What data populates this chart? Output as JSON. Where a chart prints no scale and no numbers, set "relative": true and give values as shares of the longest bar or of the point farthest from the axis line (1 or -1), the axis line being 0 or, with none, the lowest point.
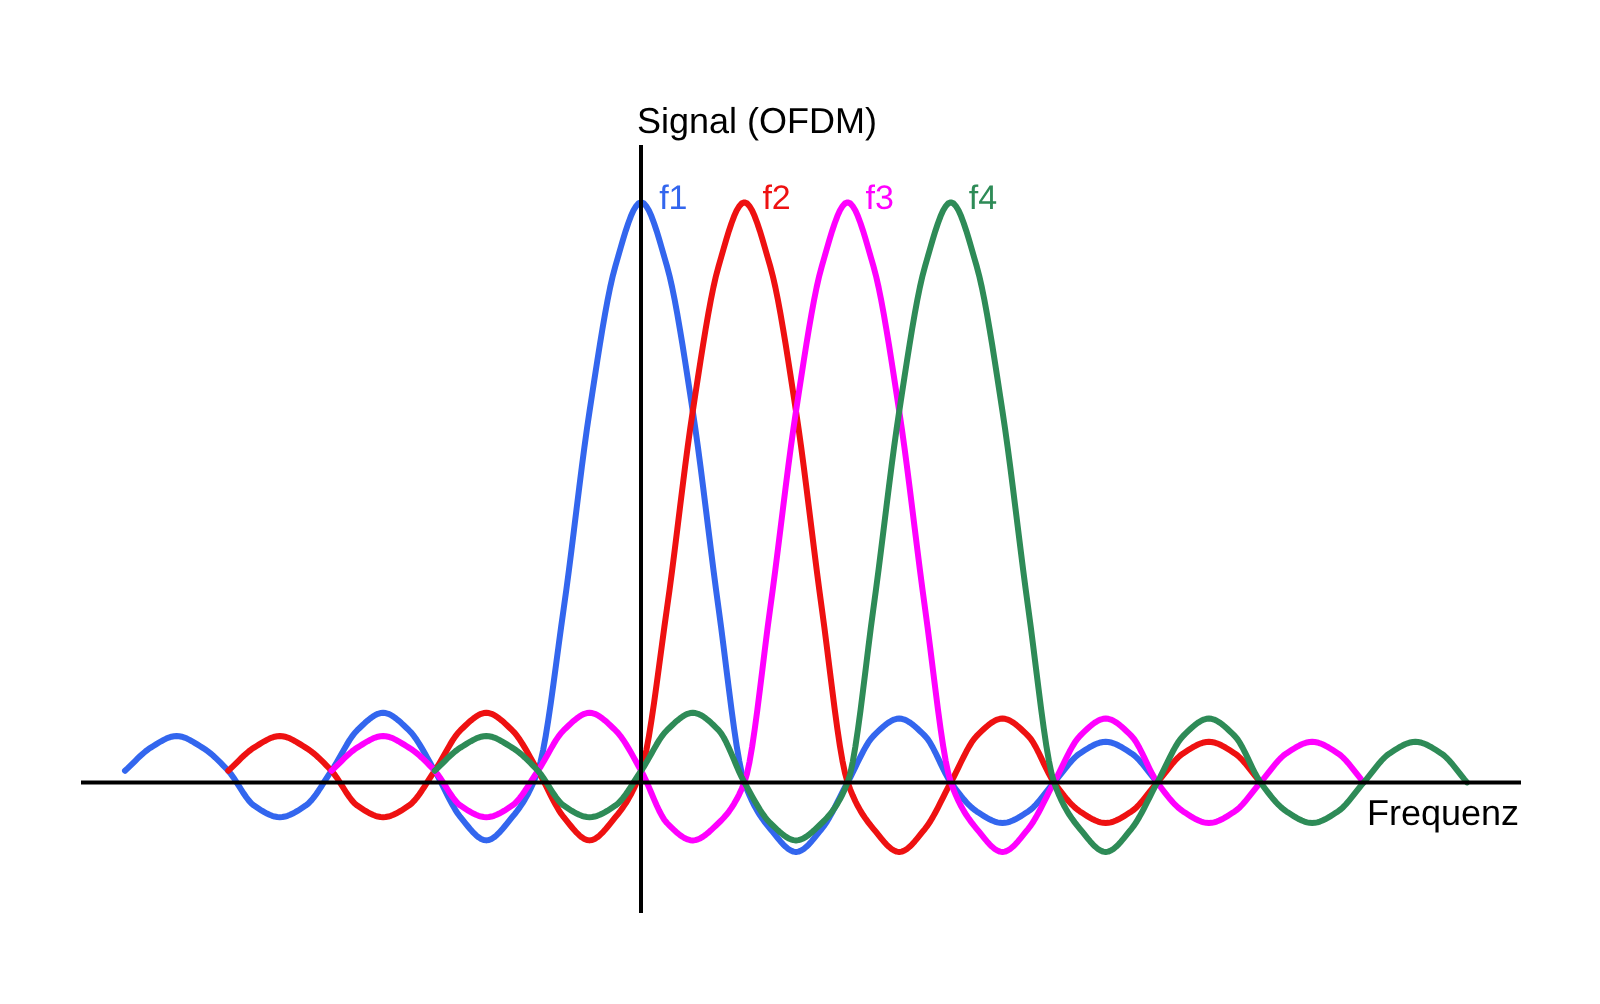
{
  "chart_data": {
    "type": "line",
    "relative": true,
    "xlabel": "Frequenz",
    "ylabel": "Signal (OFDM)",
    "categories": [
      null,
      null,
      null,
      null,
      null,
      null,
      null,
      null,
      null,
      null,
      null,
      null,
      null,
      null,
      null,
      null,
      null,
      null,
      null,
      null,
      null,
      null,
      null,
      null,
      null,
      null,
      null,
      null,
      null,
      null,
      null,
      null,
      null,
      null,
      null,
      null,
      null,
      null,
      null,
      null,
      null,
      null,
      null,
      null,
      null,
      null,
      null,
      null,
      null,
      null,
      null,
      null,
      null
    ],
    "series": [
      {
        "name": "f1",
        "color": "#3366ee",
        "values": [
          0.02,
          0.06,
          0.08,
          0.06,
          0.02,
          -0.04,
          -0.06,
          -0.04,
          0.02,
          0.09,
          0.12,
          0.09,
          0.02,
          -0.06,
          -0.1,
          -0.06,
          0.02,
          0.3,
          0.64,
          0.89,
          1,
          0.89,
          0.64,
          0.3,
          0,
          -0.08,
          -0.12,
          -0.08,
          0,
          0.08,
          0.11,
          0.08,
          0,
          -0.05,
          -0.07,
          -0.05,
          0,
          0.05,
          0.07,
          0.05,
          0,
          null,
          null,
          null,
          null,
          null,
          null,
          null,
          null,
          null,
          null,
          null,
          null
        ]
      },
      {
        "name": "f2",
        "color": "#ee1111",
        "values": [
          null,
          null,
          null,
          null,
          0.02,
          0.06,
          0.08,
          0.06,
          0.02,
          -0.04,
          -0.06,
          -0.04,
          0.02,
          0.09,
          0.12,
          0.09,
          0.02,
          -0.06,
          -0.1,
          -0.06,
          0.02,
          0.3,
          0.64,
          0.89,
          1,
          0.89,
          0.64,
          0.3,
          0,
          -0.08,
          -0.12,
          -0.08,
          0,
          0.08,
          0.11,
          0.08,
          0,
          -0.05,
          -0.07,
          -0.05,
          0,
          0.05,
          0.07,
          0.05,
          0,
          null,
          null,
          null,
          null,
          null,
          null,
          null,
          null
        ]
      },
      {
        "name": "f3",
        "color": "#ff00ff",
        "values": [
          null,
          null,
          null,
          null,
          null,
          null,
          null,
          null,
          0.02,
          0.06,
          0.08,
          0.06,
          0.02,
          -0.04,
          -0.06,
          -0.04,
          0.02,
          0.09,
          0.12,
          0.09,
          0.02,
          -0.07,
          -0.1,
          -0.07,
          0,
          0.3,
          0.64,
          0.89,
          1,
          0.89,
          0.64,
          0.3,
          0,
          -0.08,
          -0.12,
          -0.08,
          0,
          0.08,
          0.11,
          0.08,
          0,
          -0.05,
          -0.07,
          -0.05,
          0,
          0.05,
          0.07,
          0.05,
          0,
          null,
          null,
          null,
          null
        ]
      },
      {
        "name": "f4",
        "color": "#2e8b57",
        "values": [
          null,
          null,
          null,
          null,
          null,
          null,
          null,
          null,
          null,
          null,
          null,
          null,
          0.02,
          0.06,
          0.08,
          0.06,
          0.02,
          -0.04,
          -0.06,
          -0.04,
          0.02,
          0.09,
          0.12,
          0.09,
          0,
          -0.07,
          -0.1,
          -0.07,
          0,
          0.3,
          0.64,
          0.89,
          1,
          0.89,
          0.64,
          0.3,
          0,
          -0.08,
          -0.12,
          -0.08,
          0,
          0.08,
          0.11,
          0.08,
          0,
          -0.05,
          -0.07,
          -0.05,
          0,
          0.05,
          0.07,
          0.05,
          0
        ]
      }
    ]
  }
}
